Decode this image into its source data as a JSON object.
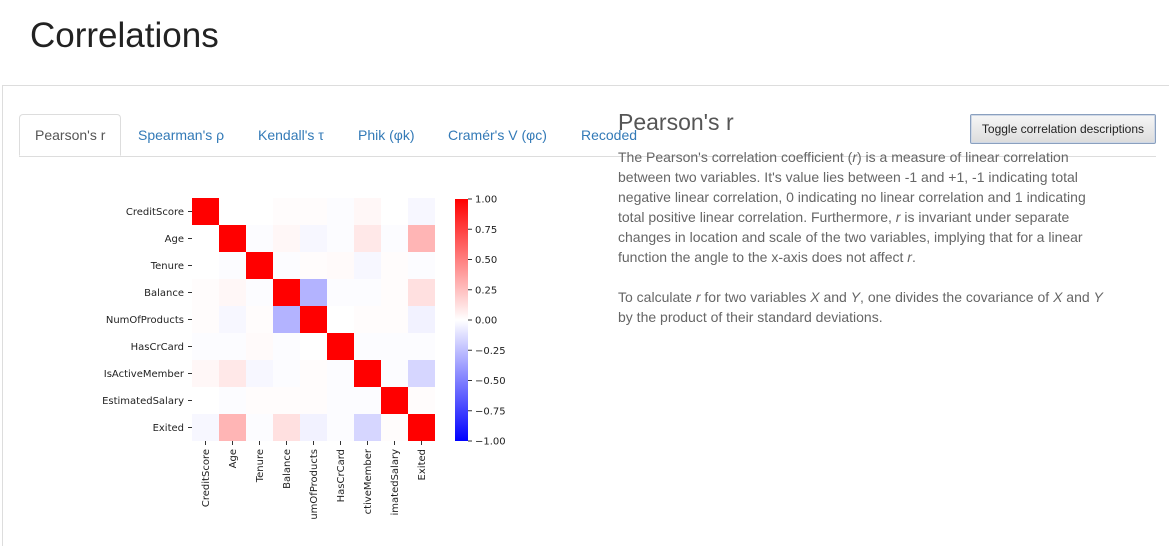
{
  "page": {
    "title": "Correlations"
  },
  "tabs": [
    {
      "label": "Pearson's r",
      "active": true
    },
    {
      "label": "Spearman's ρ",
      "active": false
    },
    {
      "label": "Kendall's τ",
      "active": false
    },
    {
      "label": "Phik (φk)",
      "active": false
    },
    {
      "label": "Cramér's V (φc)",
      "active": false
    },
    {
      "label": "Recoded",
      "active": false
    }
  ],
  "toggle_button": {
    "label": "Toggle correlation descriptions"
  },
  "description": {
    "heading": "Pearson's r",
    "p1_a": "The Pearson's correlation coefficient (",
    "p1_r1": "r",
    "p1_b": ") is a measure of linear correlation between two variables. It's value lies between -1 and +1, -1 indicating total negative linear correlation, 0 indicating no linear correlation and 1 indicating total positive linear correlation. Furthermore, ",
    "p1_r2": "r",
    "p1_c": " is invariant under separate changes in location and scale of the two variables, implying that for a linear function the angle to the x-axis does not affect ",
    "p1_r3": "r",
    "p1_d": ".",
    "p2_a": "To calculate ",
    "p2_r": "r",
    "p2_b": " for two variables ",
    "p2_x": "X",
    "p2_c": " and ",
    "p2_y": "Y",
    "p2_d": ", one divides the covariance of ",
    "p2_x2": "X",
    "p2_e": " and ",
    "p2_y2": "Y",
    "p2_f": " by the product of their standard deviations."
  },
  "colors": {
    "positive": "#ff0000",
    "negative": "#0000ff",
    "neutral": "#ffffff",
    "link": "#337ab7"
  },
  "chart_data": {
    "type": "heatmap",
    "variables": [
      "CreditScore",
      "Age",
      "Tenure",
      "Balance",
      "NumOfProducts",
      "HasCrCard",
      "IsActiveMember",
      "EstimatedSalary",
      "Exited"
    ],
    "x_tick_labels": [
      "CreditScore",
      "Age",
      "Tenure",
      "Balance",
      "umOfProducts",
      "HasCrCard",
      "ctiveMember",
      "imatedSalary",
      "Exited"
    ],
    "matrix": [
      [
        1.0,
        0.0,
        0.0,
        0.01,
        0.01,
        -0.01,
        0.03,
        0.0,
        -0.03
      ],
      [
        0.0,
        1.0,
        -0.01,
        0.03,
        -0.03,
        -0.01,
        0.09,
        -0.01,
        0.29
      ],
      [
        0.0,
        -0.01,
        1.0,
        -0.01,
        0.01,
        0.02,
        -0.03,
        0.01,
        -0.01
      ],
      [
        0.01,
        0.03,
        -0.01,
        1.0,
        -0.3,
        -0.01,
        -0.01,
        0.01,
        0.12
      ],
      [
        0.01,
        -0.03,
        0.01,
        -0.3,
        1.0,
        0.0,
        0.01,
        0.01,
        -0.05
      ],
      [
        -0.01,
        -0.01,
        0.02,
        -0.01,
        0.0,
        1.0,
        -0.01,
        -0.01,
        -0.01
      ],
      [
        0.03,
        0.09,
        -0.03,
        -0.01,
        0.01,
        -0.01,
        1.0,
        -0.01,
        -0.16
      ],
      [
        0.0,
        -0.01,
        0.01,
        0.01,
        0.01,
        -0.01,
        -0.01,
        1.0,
        0.01
      ],
      [
        -0.03,
        0.29,
        -0.01,
        0.12,
        -0.05,
        -0.01,
        -0.16,
        0.01,
        1.0
      ]
    ],
    "colorbar": {
      "min": -1.0,
      "max": 1.0,
      "ticks": [
        "1.00",
        "0.75",
        "0.50",
        "0.25",
        "0.00",
        "−0.25",
        "−0.50",
        "−0.75",
        "−1.00"
      ]
    }
  }
}
